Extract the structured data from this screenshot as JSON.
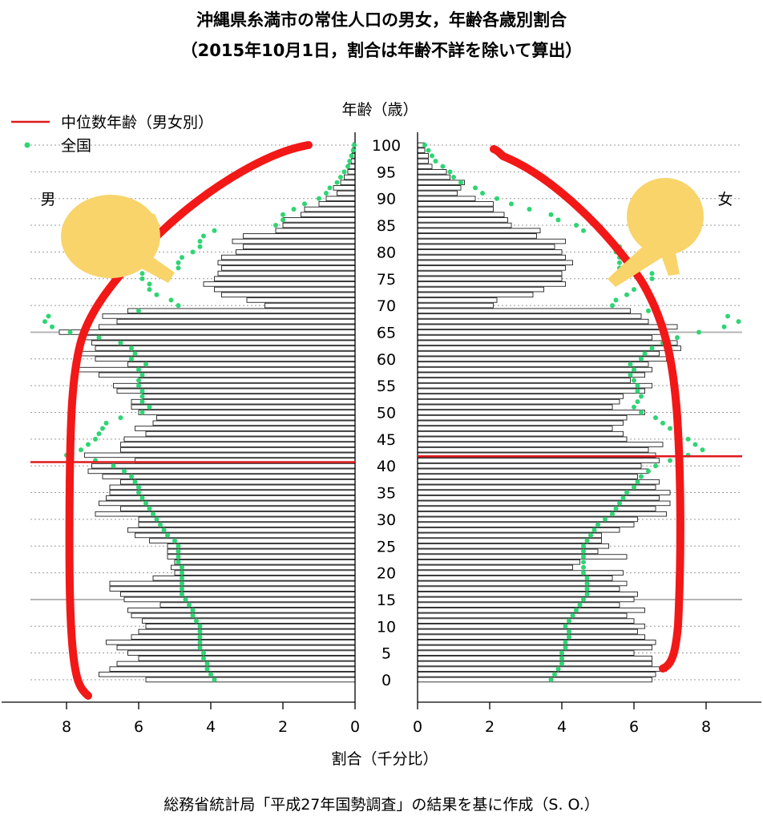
{
  "chart_data": {
    "type": "bar",
    "title": "沖縄県糸満市の常住人口の男女，年齢各歳別割合",
    "subtitle": "（2015年10月1日，割合は年齢不詳を除いて算出）",
    "ylabel": "年齢（歳）",
    "xlabel": "割合（千分比）",
    "caption": "総務省統計局「平成27年国勢調査」の結果を基に作成（S. O.）",
    "male_label": "男",
    "female_label": "女",
    "legend_position": "top-left",
    "legend": [
      {
        "label": "中位数年齢（男女別）",
        "kind": "line",
        "color": "#e0191e"
      },
      {
        "label": "全国",
        "kind": "dots",
        "color": "#2ed573"
      }
    ],
    "xlim": [
      0,
      9
    ],
    "ylim": [
      0,
      100
    ],
    "x_ticks": [
      0,
      2,
      4,
      6,
      8
    ],
    "y_ticks": [
      0,
      5,
      10,
      15,
      20,
      25,
      30,
      35,
      40,
      45,
      50,
      55,
      60,
      65,
      70,
      75,
      80,
      85,
      90,
      95,
      100
    ],
    "reference_ages": [
      15,
      65
    ],
    "median_age": {
      "male": 40.7,
      "female": 41.8
    },
    "ages": [
      0,
      1,
      2,
      3,
      4,
      5,
      6,
      7,
      8,
      9,
      10,
      11,
      12,
      13,
      14,
      15,
      16,
      17,
      18,
      19,
      20,
      21,
      22,
      23,
      24,
      25,
      26,
      27,
      28,
      29,
      30,
      31,
      32,
      33,
      34,
      35,
      36,
      37,
      38,
      39,
      40,
      41,
      42,
      43,
      44,
      45,
      46,
      47,
      48,
      49,
      50,
      51,
      52,
      53,
      54,
      55,
      56,
      57,
      58,
      59,
      60,
      61,
      62,
      63,
      64,
      65,
      66,
      67,
      68,
      69,
      70,
      71,
      72,
      73,
      74,
      75,
      76,
      77,
      78,
      79,
      80,
      81,
      82,
      83,
      84,
      85,
      86,
      87,
      88,
      89,
      90,
      91,
      92,
      93,
      94,
      95,
      96,
      97,
      98,
      99,
      100
    ],
    "series": [
      {
        "name": "男",
        "values": [
          5.8,
          7.1,
          6.8,
          6.6,
          6.0,
          6.3,
          6.6,
          6.9,
          6.2,
          6.0,
          5.8,
          5.9,
          6.2,
          6.3,
          5.4,
          6.4,
          6.5,
          6.8,
          6.8,
          5.6,
          5.0,
          5.1,
          5.0,
          5.2,
          5.2,
          5.2,
          5.7,
          6.1,
          6.3,
          6.0,
          6.0,
          7.2,
          6.5,
          7.1,
          6.9,
          6.8,
          6.8,
          6.5,
          7.0,
          7.4,
          7.3,
          6.1,
          7.5,
          6.5,
          6.5,
          6.4,
          5.8,
          6.1,
          5.6,
          5.5,
          6.0,
          6.2,
          6.2,
          5.9,
          6.6,
          6.7,
          6.0,
          7.1,
          7.8,
          6.3,
          7.2,
          7.6,
          7.2,
          7.3,
          7.5,
          8.2,
          7.1,
          6.6,
          7.0,
          6.3,
          2.5,
          3.0,
          3.7,
          3.9,
          4.2,
          3.9,
          3.8,
          3.7,
          3.8,
          3.7,
          3.3,
          3.1,
          3.4,
          3.1,
          2.2,
          2.0,
          2.0,
          1.5,
          1.4,
          1.0,
          0.8,
          0.5,
          0.6,
          0.4,
          0.3,
          0.2,
          0.2,
          0.1,
          0.1,
          0.08,
          0.05
        ]
      },
      {
        "name": "女",
        "values": [
          6.5,
          6.6,
          6.9,
          6.5,
          6.5,
          6.0,
          6.5,
          6.6,
          6.3,
          6.1,
          6.3,
          6.0,
          5.8,
          6.3,
          5.6,
          6.0,
          6.1,
          5.6,
          5.8,
          5.4,
          5.7,
          4.3,
          4.5,
          5.8,
          5.0,
          5.3,
          5.1,
          5.1,
          5.6,
          6.0,
          6.1,
          6.9,
          6.6,
          7.0,
          6.7,
          7.0,
          6.6,
          6.7,
          6.1,
          6.4,
          6.2,
          6.7,
          6.6,
          6.4,
          6.8,
          5.8,
          5.7,
          5.4,
          5.7,
          5.8,
          6.3,
          5.4,
          5.6,
          5.7,
          6.3,
          6.5,
          5.9,
          6.3,
          6.5,
          6.4,
          6.9,
          6.7,
          7.3,
          7.2,
          6.5,
          6.9,
          7.2,
          6.4,
          6.2,
          5.9,
          2.1,
          2.2,
          3.2,
          3.5,
          4.1,
          4.0,
          4.0,
          4.1,
          4.3,
          4.1,
          4.0,
          3.8,
          4.1,
          3.3,
          3.4,
          2.6,
          2.5,
          2.4,
          2.1,
          2.1,
          1.6,
          1.1,
          1.2,
          1.3,
          0.9,
          0.8,
          0.4,
          0.3,
          0.3,
          0.2,
          0.2
        ]
      },
      {
        "name": "全国（男）",
        "values": [
          3.9,
          4.0,
          4.1,
          4.1,
          4.2,
          4.2,
          4.3,
          4.3,
          4.3,
          4.3,
          4.3,
          4.4,
          4.5,
          4.5,
          4.6,
          4.7,
          4.8,
          4.8,
          4.8,
          4.8,
          4.8,
          4.8,
          4.9,
          4.9,
          4.9,
          4.9,
          5.0,
          5.2,
          5.3,
          5.4,
          5.5,
          5.6,
          5.7,
          5.8,
          5.9,
          6.0,
          6.0,
          6.1,
          6.2,
          6.4,
          6.7,
          7.2,
          8.0,
          7.6,
          7.4,
          7.2,
          7.1,
          7.0,
          6.9,
          6.5,
          5.9,
          5.7,
          5.9,
          5.9,
          5.9,
          6.0,
          6.0,
          5.9,
          6.0,
          5.8,
          6.2,
          6.1,
          6.2,
          6.5,
          7.1,
          7.9,
          8.4,
          8.6,
          8.5,
          6.0,
          4.9,
          5.1,
          5.5,
          5.7,
          5.7,
          5.9,
          5.9,
          4.9,
          4.9,
          4.8,
          4.5,
          4.3,
          4.3,
          4.2,
          3.9,
          2.2,
          2.0,
          2.0,
          1.7,
          1.4,
          1.0,
          0.8,
          0.7,
          0.5,
          0.4,
          0.3,
          0.2,
          0.15,
          0.1,
          0.05,
          0.02
        ]
      },
      {
        "name": "全国（女）",
        "values": [
          3.7,
          3.8,
          3.9,
          4.0,
          4.0,
          4.0,
          4.1,
          4.1,
          4.2,
          4.2,
          4.1,
          4.2,
          4.3,
          4.4,
          4.5,
          4.6,
          4.7,
          4.7,
          4.7,
          4.7,
          4.6,
          4.6,
          4.6,
          4.6,
          4.6,
          4.6,
          4.7,
          4.8,
          4.9,
          5.0,
          5.2,
          5.4,
          5.5,
          5.6,
          5.7,
          5.8,
          6.0,
          6.1,
          6.2,
          6.4,
          6.6,
          7.0,
          7.5,
          7.9,
          7.7,
          7.5,
          7.2,
          7.0,
          6.8,
          6.6,
          6.2,
          6.0,
          6.1,
          6.2,
          6.1,
          6.1,
          6.0,
          5.9,
          6.0,
          5.9,
          6.2,
          6.3,
          6.5,
          6.8,
          7.2,
          7.8,
          8.5,
          8.9,
          8.6,
          6.4,
          5.4,
          5.5,
          5.8,
          6.0,
          6.2,
          6.5,
          6.5,
          5.6,
          5.6,
          5.6,
          5.5,
          5.6,
          5.4,
          5.3,
          4.6,
          4.4,
          3.9,
          3.7,
          3.1,
          2.6,
          2.2,
          1.8,
          1.6,
          1.2,
          1.0,
          0.9,
          0.7,
          0.5,
          0.4,
          0.3,
          0.2
        ]
      }
    ]
  }
}
